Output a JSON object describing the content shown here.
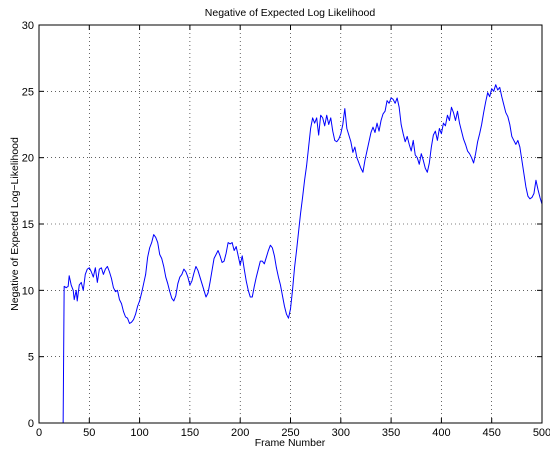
{
  "chart_data": {
    "type": "line",
    "title": "Negative of Expected Log Likelihood",
    "xlabel": "Frame Number",
    "ylabel": "Negative of Expected Log−Likelihood",
    "xlim": [
      0,
      500
    ],
    "ylim": [
      0,
      30
    ],
    "xticks": [
      "0",
      "50",
      "100",
      "150",
      "200",
      "250",
      "300",
      "350",
      "400",
      "450",
      "500"
    ],
    "yticks": [
      "0",
      "5",
      "10",
      "15",
      "20",
      "25",
      "30"
    ],
    "grid": true,
    "legend": "none",
    "series": [
      {
        "color": "#0000ff",
        "points": [
          [
            0,
            0
          ],
          [
            24,
            0
          ],
          [
            25,
            10.3
          ],
          [
            27,
            10.2
          ],
          [
            29,
            10.3
          ],
          [
            30,
            11.1
          ],
          [
            32,
            10.4
          ],
          [
            34,
            10.0
          ],
          [
            35,
            9.3
          ],
          [
            37,
            10.0
          ],
          [
            38,
            9.2
          ],
          [
            40,
            10.4
          ],
          [
            42,
            10.6
          ],
          [
            44,
            10.0
          ],
          [
            46,
            11.2
          ],
          [
            48,
            11.6
          ],
          [
            50,
            11.7
          ],
          [
            52,
            11.4
          ],
          [
            54,
            11.0
          ],
          [
            56,
            11.7
          ],
          [
            58,
            10.6
          ],
          [
            60,
            11.6
          ],
          [
            62,
            11.7
          ],
          [
            64,
            11.2
          ],
          [
            66,
            11.6
          ],
          [
            68,
            11.8
          ],
          [
            70,
            11.4
          ],
          [
            72,
            10.9
          ],
          [
            74,
            10.2
          ],
          [
            76,
            9.9
          ],
          [
            78,
            10.0
          ],
          [
            80,
            9.3
          ],
          [
            82,
            9.0
          ],
          [
            84,
            8.4
          ],
          [
            86,
            8.0
          ],
          [
            88,
            7.9
          ],
          [
            90,
            7.5
          ],
          [
            92,
            7.6
          ],
          [
            94,
            7.8
          ],
          [
            96,
            8.2
          ],
          [
            98,
            8.8
          ],
          [
            100,
            9.2
          ],
          [
            102,
            9.8
          ],
          [
            104,
            10.5
          ],
          [
            106,
            11.2
          ],
          [
            108,
            12.5
          ],
          [
            110,
            13.2
          ],
          [
            112,
            13.6
          ],
          [
            114,
            14.2
          ],
          [
            116,
            14.0
          ],
          [
            118,
            13.6
          ],
          [
            120,
            12.7
          ],
          [
            122,
            12.4
          ],
          [
            124,
            11.8
          ],
          [
            126,
            11.0
          ],
          [
            128,
            10.5
          ],
          [
            130,
            9.9
          ],
          [
            132,
            9.4
          ],
          [
            134,
            9.2
          ],
          [
            136,
            9.6
          ],
          [
            138,
            10.5
          ],
          [
            140,
            11.0
          ],
          [
            142,
            11.2
          ],
          [
            144,
            11.6
          ],
          [
            146,
            11.4
          ],
          [
            148,
            11.0
          ],
          [
            150,
            10.4
          ],
          [
            152,
            10.7
          ],
          [
            154,
            11.3
          ],
          [
            156,
            11.8
          ],
          [
            158,
            11.5
          ],
          [
            160,
            11.0
          ],
          [
            162,
            10.5
          ],
          [
            164,
            10.0
          ],
          [
            166,
            9.5
          ],
          [
            168,
            9.8
          ],
          [
            170,
            10.6
          ],
          [
            172,
            11.5
          ],
          [
            174,
            12.4
          ],
          [
            176,
            12.7
          ],
          [
            178,
            13.0
          ],
          [
            180,
            12.6
          ],
          [
            182,
            12.1
          ],
          [
            184,
            12.2
          ],
          [
            186,
            12.8
          ],
          [
            188,
            13.6
          ],
          [
            190,
            13.5
          ],
          [
            192,
            13.6
          ],
          [
            194,
            13.0
          ],
          [
            196,
            13.3
          ],
          [
            198,
            12.6
          ],
          [
            200,
            11.9
          ],
          [
            202,
            12.6
          ],
          [
            204,
            11.6
          ],
          [
            206,
            10.7
          ],
          [
            208,
            10.0
          ],
          [
            210,
            9.5
          ],
          [
            212,
            9.5
          ],
          [
            214,
            10.3
          ],
          [
            216,
            11.0
          ],
          [
            218,
            11.6
          ],
          [
            220,
            12.2
          ],
          [
            222,
            12.2
          ],
          [
            224,
            12.0
          ],
          [
            226,
            12.5
          ],
          [
            228,
            13.0
          ],
          [
            230,
            13.4
          ],
          [
            232,
            13.2
          ],
          [
            234,
            12.6
          ],
          [
            236,
            11.7
          ],
          [
            238,
            11.0
          ],
          [
            240,
            10.4
          ],
          [
            242,
            9.6
          ],
          [
            244,
            8.8
          ],
          [
            246,
            8.2
          ],
          [
            248,
            7.9
          ],
          [
            250,
            8.6
          ],
          [
            252,
            10.0
          ],
          [
            254,
            11.7
          ],
          [
            256,
            13.0
          ],
          [
            258,
            14.4
          ],
          [
            260,
            15.8
          ],
          [
            262,
            17.0
          ],
          [
            264,
            18.3
          ],
          [
            266,
            19.4
          ],
          [
            268,
            20.8
          ],
          [
            270,
            22.2
          ],
          [
            272,
            23.0
          ],
          [
            274,
            22.6
          ],
          [
            276,
            23.0
          ],
          [
            278,
            21.7
          ],
          [
            280,
            23.2
          ],
          [
            282,
            23.0
          ],
          [
            284,
            22.4
          ],
          [
            286,
            23.2
          ],
          [
            288,
            22.5
          ],
          [
            290,
            23.0
          ],
          [
            292,
            22.0
          ],
          [
            294,
            21.3
          ],
          [
            296,
            21.2
          ],
          [
            298,
            21.4
          ],
          [
            300,
            21.8
          ],
          [
            302,
            22.5
          ],
          [
            304,
            23.7
          ],
          [
            306,
            22.2
          ],
          [
            308,
            21.7
          ],
          [
            310,
            21.2
          ],
          [
            312,
            20.4
          ],
          [
            314,
            20.8
          ],
          [
            316,
            20.0
          ],
          [
            318,
            19.6
          ],
          [
            320,
            19.2
          ],
          [
            322,
            18.9
          ],
          [
            324,
            19.8
          ],
          [
            326,
            20.5
          ],
          [
            328,
            21.2
          ],
          [
            330,
            21.9
          ],
          [
            332,
            22.3
          ],
          [
            334,
            21.9
          ],
          [
            336,
            22.6
          ],
          [
            338,
            22.0
          ],
          [
            340,
            22.8
          ],
          [
            342,
            23.3
          ],
          [
            344,
            23.5
          ],
          [
            346,
            24.3
          ],
          [
            348,
            24.1
          ],
          [
            350,
            24.5
          ],
          [
            352,
            24.4
          ],
          [
            354,
            24.1
          ],
          [
            356,
            24.5
          ],
          [
            358,
            23.8
          ],
          [
            360,
            22.5
          ],
          [
            362,
            21.8
          ],
          [
            364,
            21.2
          ],
          [
            366,
            21.6
          ],
          [
            368,
            21.0
          ],
          [
            370,
            20.5
          ],
          [
            372,
            21.3
          ],
          [
            374,
            20.2
          ],
          [
            376,
            20.0
          ],
          [
            378,
            19.5
          ],
          [
            380,
            20.3
          ],
          [
            382,
            19.8
          ],
          [
            384,
            19.2
          ],
          [
            386,
            18.9
          ],
          [
            388,
            19.6
          ],
          [
            390,
            20.8
          ],
          [
            392,
            21.7
          ],
          [
            394,
            22.0
          ],
          [
            396,
            21.3
          ],
          [
            398,
            22.2
          ],
          [
            400,
            21.8
          ],
          [
            402,
            22.6
          ],
          [
            404,
            22.4
          ],
          [
            406,
            23.2
          ],
          [
            408,
            22.8
          ],
          [
            410,
            23.8
          ],
          [
            412,
            23.4
          ],
          [
            414,
            22.8
          ],
          [
            416,
            23.5
          ],
          [
            418,
            22.6
          ],
          [
            420,
            22.0
          ],
          [
            422,
            21.4
          ],
          [
            424,
            21.0
          ],
          [
            426,
            20.5
          ],
          [
            428,
            20.3
          ],
          [
            430,
            20.0
          ],
          [
            432,
            19.6
          ],
          [
            434,
            20.3
          ],
          [
            436,
            21.2
          ],
          [
            438,
            21.8
          ],
          [
            440,
            22.5
          ],
          [
            442,
            23.4
          ],
          [
            444,
            24.2
          ],
          [
            446,
            24.9
          ],
          [
            448,
            24.6
          ],
          [
            450,
            25.2
          ],
          [
            452,
            25.0
          ],
          [
            454,
            25.5
          ],
          [
            456,
            25.1
          ],
          [
            458,
            25.3
          ],
          [
            460,
            24.6
          ],
          [
            462,
            24.0
          ],
          [
            464,
            23.4
          ],
          [
            466,
            23.1
          ],
          [
            468,
            22.5
          ],
          [
            470,
            21.6
          ],
          [
            472,
            21.3
          ],
          [
            474,
            21.0
          ],
          [
            476,
            21.3
          ],
          [
            478,
            20.8
          ],
          [
            480,
            19.8
          ],
          [
            482,
            18.8
          ],
          [
            484,
            17.8
          ],
          [
            486,
            17.1
          ],
          [
            488,
            16.9
          ],
          [
            490,
            17.0
          ],
          [
            492,
            17.3
          ],
          [
            494,
            18.3
          ],
          [
            496,
            17.6
          ],
          [
            498,
            17.0
          ],
          [
            500,
            16.5
          ]
        ]
      }
    ]
  }
}
